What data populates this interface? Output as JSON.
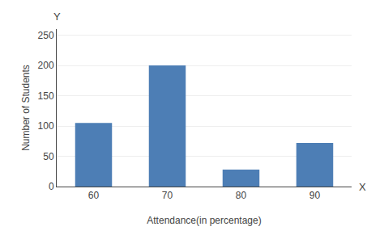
{
  "chart_data": {
    "type": "bar",
    "categories": [
      "60",
      "70",
      "80",
      "90"
    ],
    "values": [
      105,
      200,
      28,
      72
    ],
    "color": "#4d7eb5",
    "xlabel": "Attendance(in percentage)",
    "ylabel": "Number of Students",
    "annotations": [
      "X",
      "Y"
    ],
    "ylim": [
      0,
      260
    ],
    "yticks": [
      0,
      50,
      100,
      150,
      200,
      250
    ],
    "grid": true
  }
}
